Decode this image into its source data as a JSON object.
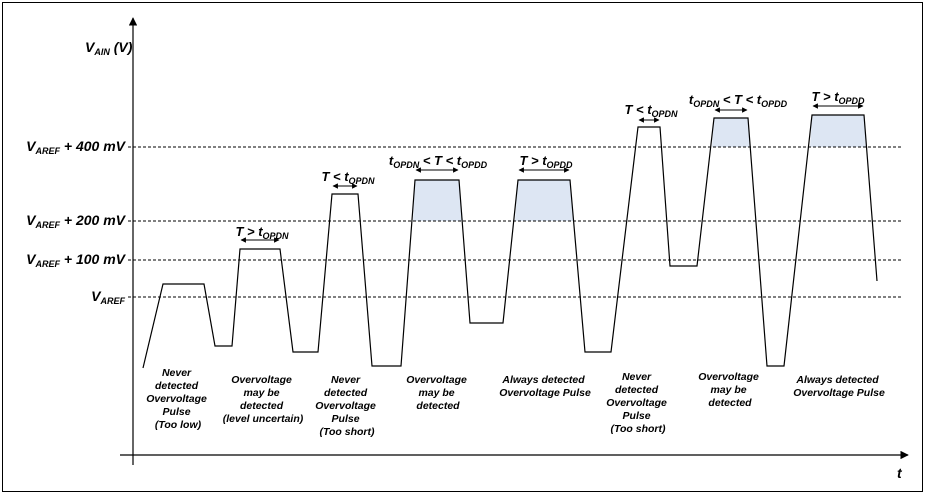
{
  "axes": {
    "y_label": {
      "main": "V",
      "sub": "AIN",
      "rest": " (V)"
    },
    "x_label": "t"
  },
  "levels": [
    {
      "main": "V",
      "sub": "AREF",
      "rest": ""
    },
    {
      "main": "V",
      "sub": "AREF",
      "rest": " + 100 mV"
    },
    {
      "main": "V",
      "sub": "AREF",
      "rest": " + 200 mV"
    },
    {
      "main": "V",
      "sub": "AREF",
      "rest": " + 400 mV"
    }
  ],
  "timing_labels": [
    {
      "pre": "",
      "pre_sub": "",
      "mid": "T > t",
      "sub": "OPDN"
    },
    {
      "pre": "",
      "pre_sub": "",
      "mid": "T < t",
      "sub": "OPDN"
    },
    {
      "pre": "t",
      "pre_sub": "OPDN",
      "mid": " < T < t",
      "sub": "OPDD"
    },
    {
      "pre": "",
      "pre_sub": "",
      "mid": "T > t",
      "sub": "OPDD"
    },
    {
      "pre": "",
      "pre_sub": "",
      "mid": "T < t",
      "sub": "OPDN"
    },
    {
      "pre": "t",
      "pre_sub": "OPDN",
      "mid": " < T < t",
      "sub": "OPDD"
    },
    {
      "pre": "",
      "pre_sub": "",
      "mid": "T > t",
      "sub": "OPDD"
    }
  ],
  "captions": [
    [
      "Never",
      "detected",
      "Overvoltage",
      "Pulse",
      "(Too low)"
    ],
    [
      "Overvoltage",
      "may be",
      "detected",
      "(level uncertain)"
    ],
    [
      "Never",
      "detected",
      "Overvoltage",
      "Pulse",
      "(Too short)"
    ],
    [
      "Overvoltage",
      "may be",
      "detected"
    ],
    [
      "Always detected",
      "Overvoltage Pulse"
    ],
    [
      "Never",
      "detected",
      "Overvoltage",
      "Pulse",
      "(Too short)"
    ],
    [
      "Overvoltage",
      "may be",
      "detected"
    ],
    [
      "Always detected",
      "Overvoltage Pulse"
    ]
  ],
  "colors": {
    "line": "#000000",
    "shade": "#dde6f3"
  }
}
